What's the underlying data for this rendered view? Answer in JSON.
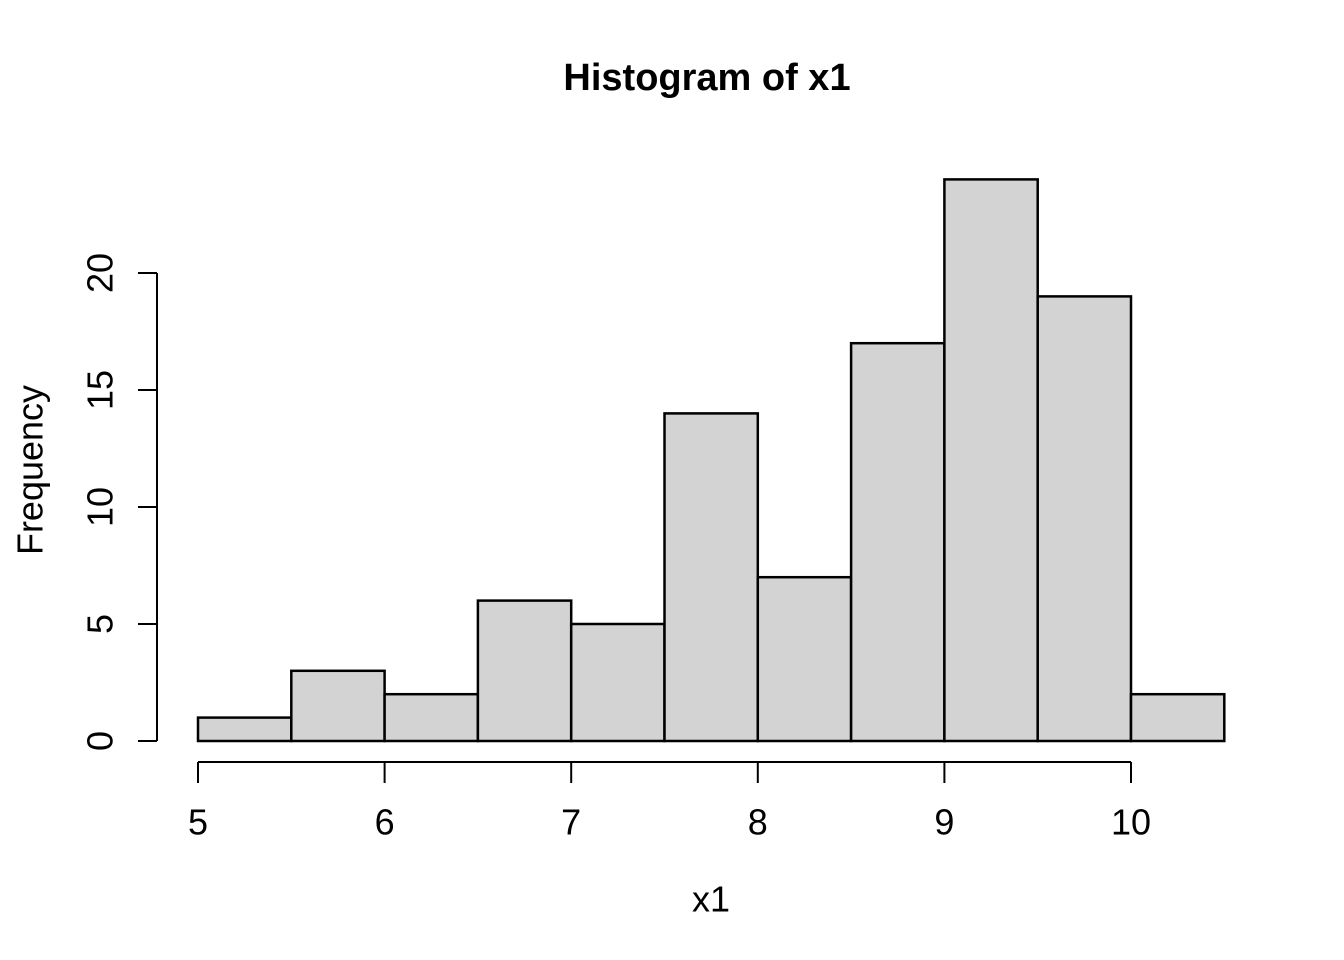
{
  "figure": {
    "title": "Histogram of x1",
    "xlabel": "x1",
    "ylabel": "Frequency"
  },
  "colors": {
    "background": "#ffffff",
    "bar_fill": "#d3d3d3",
    "bar_stroke": "#000000",
    "axis_line": "#000000",
    "text": "#000000"
  },
  "chart_data": {
    "type": "bar",
    "subtype": "histogram",
    "title": "Histogram of x1",
    "xlabel": "x1",
    "ylabel": "Frequency",
    "bin_edges": [
      5,
      5.5,
      6,
      6.5,
      7,
      7.5,
      8,
      8.5,
      9,
      9.5,
      10,
      10.5
    ],
    "categories": [
      "5-5.5",
      "5.5-6",
      "6-6.5",
      "6.5-7",
      "7-7.5",
      "7.5-8",
      "8-8.5",
      "8.5-9",
      "9-9.5",
      "9.5-10",
      "10-10.5"
    ],
    "values": [
      1,
      3,
      2,
      6,
      5,
      14,
      7,
      17,
      24,
      19,
      2
    ],
    "x_ticks": [
      5,
      6,
      7,
      8,
      9,
      10
    ],
    "y_ticks": [
      0,
      5,
      10,
      15,
      20
    ],
    "xlim": [
      5,
      10.5
    ],
    "ylim": [
      0,
      24
    ],
    "grid": false,
    "legend": "none"
  }
}
